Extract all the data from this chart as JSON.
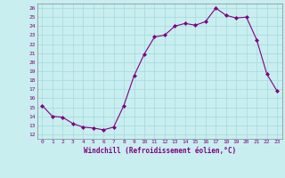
{
  "x": [
    0,
    1,
    2,
    3,
    4,
    5,
    6,
    7,
    8,
    9,
    10,
    11,
    12,
    13,
    14,
    15,
    16,
    17,
    18,
    19,
    20,
    21,
    22,
    23
  ],
  "y": [
    15.2,
    14.0,
    13.9,
    13.2,
    12.8,
    12.7,
    12.5,
    12.8,
    15.2,
    18.5,
    20.9,
    22.8,
    23.0,
    24.0,
    24.3,
    24.1,
    24.5,
    26.0,
    25.2,
    24.9,
    25.0,
    22.5,
    18.7,
    16.8
  ],
  "line_color": "#800080",
  "marker": "D",
  "marker_size": 2,
  "bg_color": "#c8eef0",
  "grid_color": "#aadddd",
  "xlabel": "Windchill (Refroidissement éolien,°C)",
  "ylabel_ticks": [
    12,
    13,
    14,
    15,
    16,
    17,
    18,
    19,
    20,
    21,
    22,
    23,
    24,
    25,
    26
  ],
  "xlim": [
    -0.5,
    23.5
  ],
  "ylim": [
    11.5,
    26.5
  ],
  "xtick_labels": [
    "0",
    "1",
    "2",
    "3",
    "4",
    "5",
    "6",
    "7",
    "8",
    "9",
    "10",
    "11",
    "12",
    "13",
    "14",
    "15",
    "16",
    "17",
    "18",
    "19",
    "20",
    "21",
    "22",
    "23"
  ]
}
